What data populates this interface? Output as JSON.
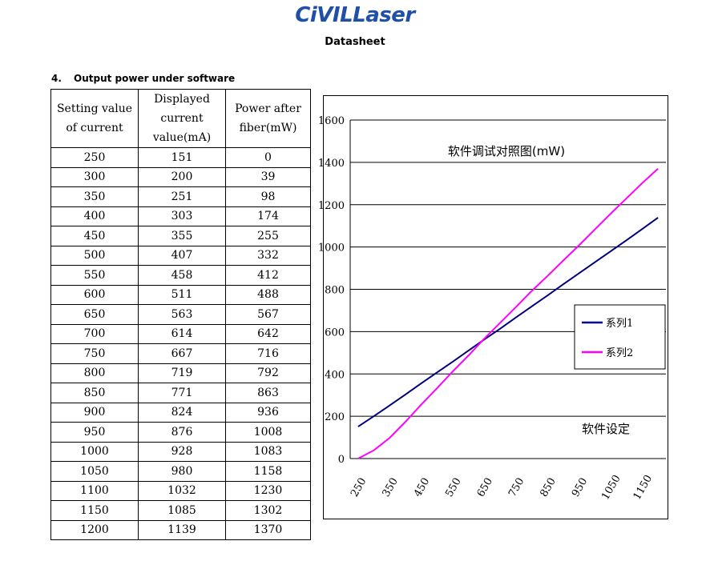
{
  "header": {
    "logo": "CiVILLaser",
    "title": "Datasheet"
  },
  "section": {
    "number": "4.",
    "title": "Output power under software"
  },
  "table": {
    "headers": [
      "Setting value of current",
      "Displayed current value(mA)",
      "Power after fiber(mW)"
    ],
    "rows": [
      [
        "250",
        "151",
        "0"
      ],
      [
        "300",
        "200",
        "39"
      ],
      [
        "350",
        "251",
        "98"
      ],
      [
        "400",
        "303",
        "174"
      ],
      [
        "450",
        "355",
        "255"
      ],
      [
        "500",
        "407",
        "332"
      ],
      [
        "550",
        "458",
        "412"
      ],
      [
        "600",
        "511",
        "488"
      ],
      [
        "650",
        "563",
        "567"
      ],
      [
        "700",
        "614",
        "642"
      ],
      [
        "750",
        "667",
        "716"
      ],
      [
        "800",
        "719",
        "792"
      ],
      [
        "850",
        "771",
        "863"
      ],
      [
        "900",
        "824",
        "936"
      ],
      [
        "950",
        "876",
        "1008"
      ],
      [
        "1000",
        "928",
        "1083"
      ],
      [
        "1050",
        "980",
        "1158"
      ],
      [
        "1100",
        "1032",
        "1230"
      ],
      [
        "1150",
        "1085",
        "1302"
      ],
      [
        "1200",
        "1139",
        "1370"
      ]
    ]
  },
  "chart_data": {
    "type": "line",
    "title": "软件调试对照图(mW)",
    "xlabel": "软件设定",
    "ylabel": "",
    "x": [
      250,
      300,
      350,
      400,
      450,
      500,
      550,
      600,
      650,
      700,
      750,
      800,
      850,
      900,
      950,
      1000,
      1050,
      1100,
      1150,
      1200
    ],
    "x_tick_labels": [
      "250",
      "350",
      "450",
      "550",
      "650",
      "750",
      "850",
      "950",
      "1050",
      "1150"
    ],
    "ylim": [
      0,
      1600
    ],
    "y_ticks": [
      0,
      200,
      400,
      600,
      800,
      1000,
      1200,
      1400,
      1600
    ],
    "grid": true,
    "legend_position": "right",
    "series": [
      {
        "name": "系列1",
        "color": "#000080",
        "values": [
          151,
          200,
          251,
          303,
          355,
          407,
          458,
          511,
          563,
          614,
          667,
          719,
          771,
          824,
          876,
          928,
          980,
          1032,
          1085,
          1139
        ]
      },
      {
        "name": "系列2",
        "color": "#ff00ff",
        "values": [
          0,
          39,
          98,
          174,
          255,
          332,
          412,
          488,
          567,
          642,
          716,
          792,
          863,
          936,
          1008,
          1083,
          1158,
          1230,
          1302,
          1370
        ]
      }
    ]
  }
}
